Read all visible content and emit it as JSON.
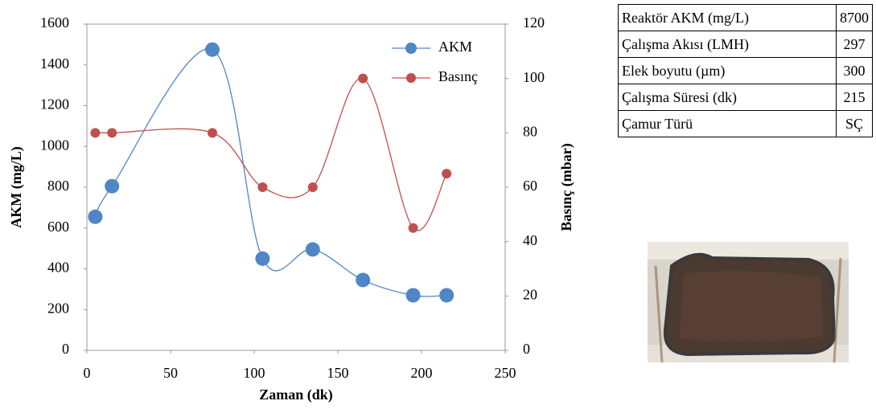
{
  "chart_data": {
    "type": "scatter-smooth",
    "x_label": "Zaman (dk)",
    "y_label": "AKM (mg/L)",
    "y2_label": "Basınç (mbar)",
    "x": [
      5,
      15,
      75,
      105,
      135,
      165,
      195,
      215
    ],
    "series": [
      {
        "name": "AKM",
        "color": "#4f86c6",
        "values": [
          655,
          805,
          1475,
          450,
          495,
          345,
          270,
          270
        ]
      },
      {
        "name": "Basınç",
        "color": "#c0504d",
        "axis": "y2",
        "values": [
          80,
          80,
          80,
          60,
          60,
          100,
          45,
          65
        ]
      }
    ],
    "xlim": [
      0,
      250
    ],
    "xticks": [
      0,
      50,
      100,
      150,
      200,
      250
    ],
    "ylim": [
      0,
      1600
    ],
    "yticks": [
      0,
      200,
      400,
      600,
      800,
      1000,
      1200,
      1400,
      1600
    ],
    "y2lim": [
      0,
      120
    ],
    "y2ticks": [
      0,
      20,
      40,
      60,
      80,
      100,
      120
    ],
    "legend": "top-right"
  },
  "table": {
    "rows": [
      [
        "Reaktör AKM (mg/L)",
        8700
      ],
      [
        "Çalışma Akısı (LMH)",
        297
      ],
      [
        "Elek boyutu (µm)",
        300
      ],
      [
        "Çalışma Süresi (dk)",
        215
      ],
      [
        "Çamur Türü",
        "SÇ"
      ]
    ]
  }
}
